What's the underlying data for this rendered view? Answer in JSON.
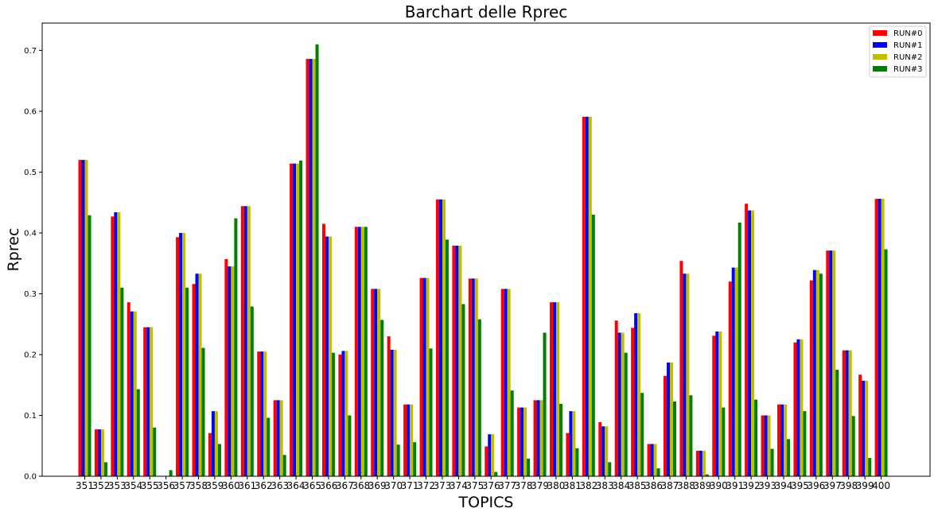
{
  "chart_data": {
    "type": "bar",
    "title": "Barchart delle Rprec",
    "xlabel": "TOPICS",
    "ylabel": "Rprec",
    "ylim": [
      0,
      0.745
    ],
    "yticks": [
      0.0,
      0.1,
      0.2,
      0.3,
      0.4,
      0.5,
      0.6,
      0.7
    ],
    "ytick_labels": [
      "0.0",
      "0.1",
      "0.2",
      "0.3",
      "0.4",
      "0.5",
      "0.6",
      "0.7"
    ],
    "grid": false,
    "legend_position": "top-right",
    "categories": [
      "351",
      "352",
      "353",
      "354",
      "355",
      "356",
      "357",
      "358",
      "359",
      "360",
      "361",
      "362",
      "363",
      "364",
      "365",
      "366",
      "367",
      "368",
      "369",
      "370",
      "371",
      "372",
      "373",
      "374",
      "375",
      "376",
      "377",
      "378",
      "379",
      "380",
      "381",
      "382",
      "383",
      "384",
      "385",
      "386",
      "387",
      "388",
      "389",
      "390",
      "391",
      "392",
      "393",
      "394",
      "395",
      "396",
      "397",
      "398",
      "399",
      "400"
    ],
    "series": [
      {
        "name": "RUN#0",
        "color": "#ff0000",
        "values": [
          0.52,
          0.077,
          0.427,
          0.286,
          0.245,
          0,
          0.393,
          0.316,
          0.071,
          0.357,
          0.444,
          0.205,
          0.125,
          0.514,
          0.686,
          0.415,
          0.2,
          0.41,
          0.308,
          0.23,
          0.118,
          0.326,
          0.455,
          0.379,
          0.325,
          0.049,
          0.308,
          0.113,
          0.125,
          0.286,
          0.071,
          0.591,
          0.089,
          0.256,
          0.244,
          0.053,
          0.165,
          0.354,
          0.042,
          0.231,
          0.32,
          0.448,
          0.1,
          0.118,
          0.22,
          0.322,
          0.371,
          0.207,
          0.167,
          0.456
        ]
      },
      {
        "name": "RUN#1",
        "color": "#0000ff",
        "values": [
          0.52,
          0.077,
          0.434,
          0.271,
          0.245,
          0,
          0.4,
          0.333,
          0.107,
          0.345,
          0.444,
          0.205,
          0.125,
          0.514,
          0.686,
          0.394,
          0.206,
          0.41,
          0.308,
          0.208,
          0.118,
          0.326,
          0.455,
          0.379,
          0.325,
          0.069,
          0.308,
          0.113,
          0.125,
          0.286,
          0.107,
          0.591,
          0.082,
          0.236,
          0.268,
          0.053,
          0.187,
          0.333,
          0.042,
          0.238,
          0.343,
          0.437,
          0.1,
          0.118,
          0.225,
          0.339,
          0.371,
          0.207,
          0.157,
          0.456
        ]
      },
      {
        "name": "RUN#2",
        "color": "#bfbf00",
        "values": [
          0.52,
          0.077,
          0.434,
          0.271,
          0.245,
          0,
          0.4,
          0.333,
          0.107,
          0.345,
          0.444,
          0.205,
          0.125,
          0.514,
          0.686,
          0.394,
          0.206,
          0.41,
          0.308,
          0.208,
          0.118,
          0.326,
          0.455,
          0.379,
          0.325,
          0.069,
          0.308,
          0.113,
          0.125,
          0.286,
          0.107,
          0.591,
          0.082,
          0.236,
          0.268,
          0.053,
          0.187,
          0.333,
          0.042,
          0.238,
          0.343,
          0.437,
          0.1,
          0.118,
          0.225,
          0.339,
          0.371,
          0.207,
          0.157,
          0.456
        ]
      },
      {
        "name": "RUN#3",
        "color": "#008000",
        "values": [
          0.429,
          0.023,
          0.31,
          0.143,
          0.08,
          0.01,
          0.31,
          0.211,
          0.053,
          0.424,
          0.279,
          0.096,
          0.035,
          0.519,
          0.71,
          0.203,
          0.1,
          0.41,
          0.257,
          0.052,
          0.056,
          0.21,
          0.389,
          0.283,
          0.258,
          0.007,
          0.141,
          0.029,
          0.236,
          0.119,
          0.046,
          0.43,
          0.023,
          0.203,
          0.137,
          0.013,
          0.123,
          0.133,
          0.003,
          0.113,
          0.417,
          0.126,
          0.045,
          0.061,
          0.107,
          0.333,
          0.175,
          0.099,
          0.03,
          0.373
        ]
      }
    ]
  }
}
